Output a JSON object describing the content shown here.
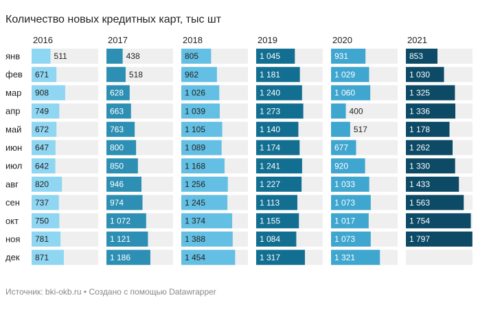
{
  "title": "Количество новых кредитных карт, тыс шт",
  "source": "Источник: bki-okb.ru • Создано с помощью Datawrapper",
  "chart_data": {
    "type": "bar",
    "title": "Количество новых кредитных карт, тыс шт",
    "xlabel": "",
    "ylabel": "",
    "categories": [
      "янв",
      "фев",
      "мар",
      "апр",
      "май",
      "июн",
      "июл",
      "авг",
      "сен",
      "окт",
      "ноя",
      "дек"
    ],
    "xlim": [
      0,
      1800
    ],
    "series": [
      {
        "name": "2016",
        "color": "#8fd6f3",
        "label_color": "#222222",
        "values": [
          511,
          671,
          908,
          749,
          672,
          647,
          642,
          820,
          737,
          750,
          781,
          871
        ],
        "labels": [
          "511",
          "671",
          "908",
          "749",
          "672",
          "647",
          "642",
          "820",
          "737",
          "750",
          "781",
          "871"
        ]
      },
      {
        "name": "2017",
        "color": "#2d8fb3",
        "label_color": "#ffffff",
        "values": [
          438,
          518,
          628,
          663,
          763,
          800,
          850,
          946,
          974,
          1072,
          1121,
          1186
        ],
        "labels": [
          "438",
          "518",
          "628",
          "663",
          "763",
          "800",
          "850",
          "946",
          "974",
          "1 072",
          "1 121",
          "1 186"
        ]
      },
      {
        "name": "2018",
        "color": "#63bfe3",
        "label_color": "#222222",
        "values": [
          805,
          962,
          1026,
          1039,
          1105,
          1089,
          1168,
          1256,
          1245,
          1374,
          1388,
          1454
        ],
        "labels": [
          "805",
          "962",
          "1 026",
          "1 039",
          "1 105",
          "1 089",
          "1 168",
          "1 256",
          "1 245",
          "1 374",
          "1 388",
          "1 454"
        ]
      },
      {
        "name": "2019",
        "color": "#136f91",
        "label_color": "#ffffff",
        "values": [
          1045,
          1181,
          1240,
          1273,
          1140,
          1174,
          1241,
          1227,
          1113,
          1155,
          1084,
          1317
        ],
        "labels": [
          "1 045",
          "1 181",
          "1 240",
          "1 273",
          "1 140",
          "1 174",
          "1 241",
          "1 227",
          "1 113",
          "1 155",
          "1 084",
          "1 317"
        ]
      },
      {
        "name": "2020",
        "color": "#3fa6cf",
        "label_color": "#ffffff",
        "values": [
          931,
          1029,
          1060,
          400,
          517,
          677,
          920,
          1033,
          1073,
          1017,
          1073,
          1321
        ],
        "labels": [
          "931",
          "1 029",
          "1 060",
          "400",
          "517",
          "677",
          "920",
          "1 033",
          "1 073",
          "1 017",
          "1 073",
          "1 321"
        ]
      },
      {
        "name": "2021",
        "color": "#0c4a66",
        "label_color": "#ffffff",
        "values": [
          853,
          1030,
          1325,
          1336,
          1178,
          1262,
          1330,
          1433,
          1563,
          1754,
          1797,
          null
        ],
        "labels": [
          "853",
          "1 030",
          "1 325",
          "1 336",
          "1 178",
          "1 262",
          "1 330",
          "1 433",
          "1 563",
          "1 754",
          "1 797",
          ""
        ]
      }
    ]
  }
}
